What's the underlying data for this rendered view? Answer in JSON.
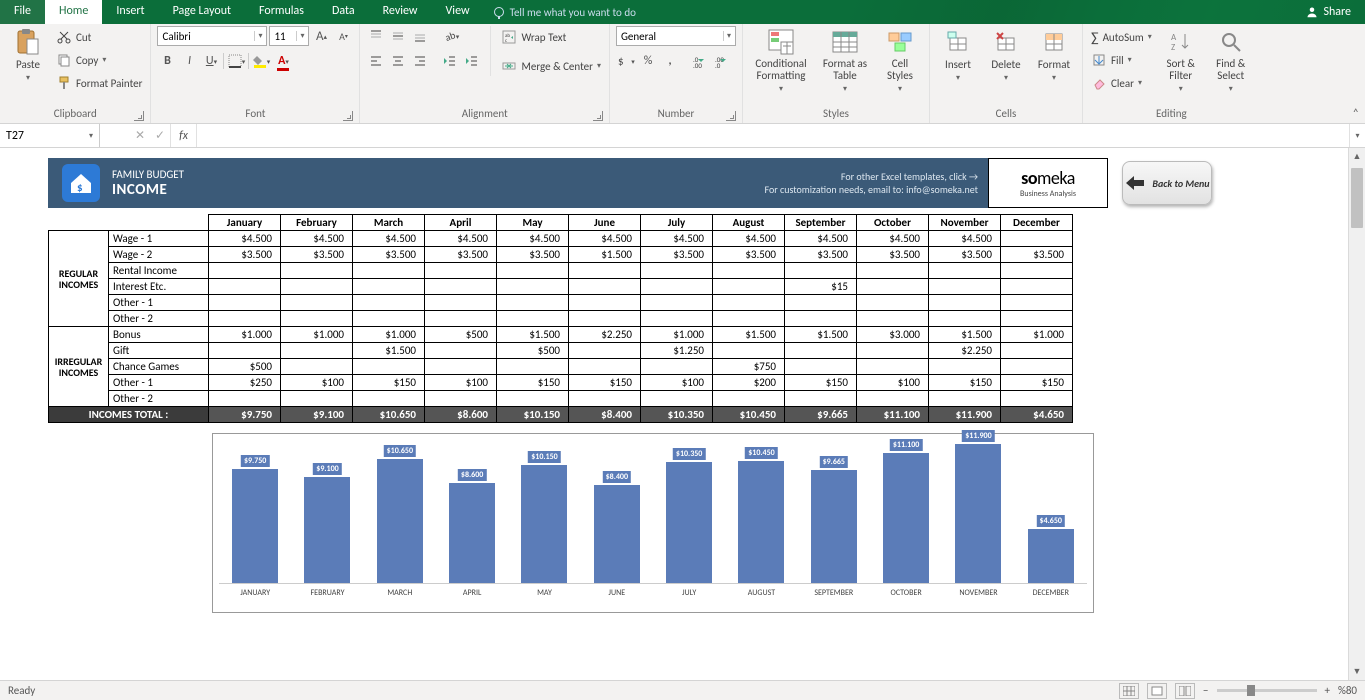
{
  "menu": {
    "items": [
      "File",
      "Home",
      "Insert",
      "Page Layout",
      "Formulas",
      "Data",
      "Review",
      "View"
    ],
    "active": "Home",
    "tell_me": "Tell me what you want to do",
    "share": "Share"
  },
  "ribbon": {
    "clipboard": {
      "label": "Clipboard",
      "paste": "Paste",
      "cut": "Cut",
      "copy": "Copy",
      "format_painter": "Format Painter"
    },
    "font": {
      "label": "Font",
      "name": "Calibri",
      "size": "11"
    },
    "alignment": {
      "label": "Alignment",
      "wrap": "Wrap Text",
      "merge": "Merge & Center"
    },
    "number": {
      "label": "Number",
      "format": "General"
    },
    "styles": {
      "label": "Styles",
      "cond": "Conditional Formatting",
      "table": "Format as Table",
      "cell": "Cell Styles"
    },
    "cells": {
      "label": "Cells",
      "insert": "Insert",
      "delete": "Delete",
      "format": "Format"
    },
    "editing": {
      "label": "Editing",
      "autosum": "AutoSum",
      "fill": "Fill",
      "clear": "Clear",
      "sort": "Sort & Filter",
      "find": "Find & Select"
    }
  },
  "namebox": {
    "ref": "T27"
  },
  "banner": {
    "subtitle": "FAMILY BUDGET",
    "title": "INCOME",
    "line1": "For other Excel templates, click →",
    "line2": "For customization needs, email to: info@someka.net",
    "logo": "someka",
    "logo_sub": "Business Analysis",
    "back": "Back to Menu"
  },
  "months": [
    "January",
    "February",
    "March",
    "April",
    "May",
    "June",
    "July",
    "August",
    "September",
    "October",
    "November",
    "December"
  ],
  "sections": [
    {
      "header": "REGULAR INCOMES",
      "rows": [
        {
          "label": "Wage - 1",
          "vals": [
            "$4.500",
            "$4.500",
            "$4.500",
            "$4.500",
            "$4.500",
            "$4.500",
            "$4.500",
            "$4.500",
            "$4.500",
            "$4.500",
            "$4.500",
            ""
          ]
        },
        {
          "label": "Wage - 2",
          "vals": [
            "$3.500",
            "$3.500",
            "$3.500",
            "$3.500",
            "$3.500",
            "$1.500",
            "$3.500",
            "$3.500",
            "$3.500",
            "$3.500",
            "$3.500",
            "$3.500"
          ]
        },
        {
          "label": "Rental Income",
          "vals": [
            "",
            "",
            "",
            "",
            "",
            "",
            "",
            "",
            "",
            "",
            "",
            ""
          ]
        },
        {
          "label": "Interest Etc.",
          "vals": [
            "",
            "",
            "",
            "",
            "",
            "",
            "",
            "",
            "$15",
            "",
            "",
            ""
          ]
        },
        {
          "label": "Other - 1",
          "vals": [
            "",
            "",
            "",
            "",
            "",
            "",
            "",
            "",
            "",
            "",
            "",
            ""
          ]
        },
        {
          "label": "Other - 2",
          "vals": [
            "",
            "",
            "",
            "",
            "",
            "",
            "",
            "",
            "",
            "",
            "",
            ""
          ]
        }
      ]
    },
    {
      "header": "IRREGULAR INCOMES",
      "rows": [
        {
          "label": "Bonus",
          "vals": [
            "$1.000",
            "$1.000",
            "$1.000",
            "$500",
            "$1.500",
            "$2.250",
            "$1.000",
            "$1.500",
            "$1.500",
            "$3.000",
            "$1.500",
            "$1.000"
          ]
        },
        {
          "label": "Gift",
          "vals": [
            "",
            "",
            "$1.500",
            "",
            "$500",
            "",
            "$1.250",
            "",
            "",
            "",
            "$2.250",
            ""
          ]
        },
        {
          "label": "Chance Games",
          "vals": [
            "$500",
            "",
            "",
            "",
            "",
            "",
            "",
            "$750",
            "",
            "",
            "",
            ""
          ]
        },
        {
          "label": "Other - 1",
          "vals": [
            "$250",
            "$100",
            "$150",
            "$100",
            "$150",
            "$150",
            "$100",
            "$200",
            "$150",
            "$100",
            "$150",
            "$150"
          ]
        },
        {
          "label": "Other - 2",
          "vals": [
            "",
            "",
            "",
            "",
            "",
            "",
            "",
            "",
            "",
            "",
            "",
            ""
          ]
        }
      ]
    }
  ],
  "totals": {
    "label": "INCOMES TOTAL :",
    "vals": [
      "$9.750",
      "$9.100",
      "$10.650",
      "$8.600",
      "$10.150",
      "$8.400",
      "$10.350",
      "$10.450",
      "$9.665",
      "$11.100",
      "$11.900",
      "$4.650"
    ]
  },
  "chart": {
    "type": "bar",
    "bar_color": "#5b7cb8",
    "background": "#ffffff",
    "max": 12000,
    "labels": [
      "JANUARY",
      "FEBRUARY",
      "MARCH",
      "APRIL",
      "MAY",
      "JUNE",
      "JULY",
      "AUGUST",
      "SEPTEMBER",
      "OCTOBER",
      "NOVEMBER",
      "DECEMBER"
    ],
    "values": [
      9750,
      9100,
      10650,
      8600,
      10150,
      8400,
      10350,
      10450,
      9665,
      11100,
      11900,
      4650
    ],
    "display": [
      "$9.750",
      "$9.100",
      "$10.650",
      "$8.600",
      "$10.150",
      "$8.400",
      "$10.350",
      "$10.450",
      "$9.665",
      "$11.100",
      "$11.900",
      "$4.650"
    ]
  },
  "status": {
    "ready": "Ready",
    "zoom": "%80"
  }
}
